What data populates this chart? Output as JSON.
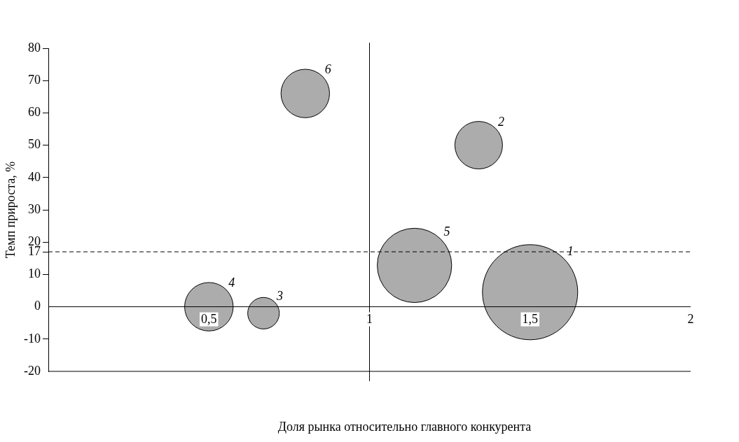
{
  "chart_data": {
    "type": "bubble",
    "xlabel": "Доля рынка относительно главного конкурента",
    "ylabel": "Темп прироста, %",
    "x": [
      1.5,
      1.34,
      0.67,
      0.5,
      1.14,
      0.8
    ],
    "values": [
      4.5,
      50,
      -2,
      0,
      12.8,
      66
    ],
    "sizes": [
      1,
      0.25,
      0.11,
      0.26,
      0.61,
      0.26
    ],
    "color": "#acacac",
    "xlim": [
      0,
      2
    ],
    "xticks": [
      {
        "value": 0.5,
        "label": "0,5"
      },
      1,
      {
        "value": 1.5,
        "label": "1,5"
      },
      2
    ],
    "ylim": [
      -20,
      80
    ],
    "yticks": [
      -20,
      -10,
      0,
      10,
      17,
      20,
      30,
      40,
      50,
      60,
      70,
      80
    ],
    "ref_lines": [
      {
        "axis": "x",
        "value": 1,
        "line_style": "solid"
      },
      {
        "axis": "y",
        "value": 17,
        "line_style": "dashed"
      }
    ],
    "annotations": [
      "1",
      "2",
      "3",
      "4",
      "5",
      "6"
    ],
    "legend": false,
    "grid": false
  }
}
